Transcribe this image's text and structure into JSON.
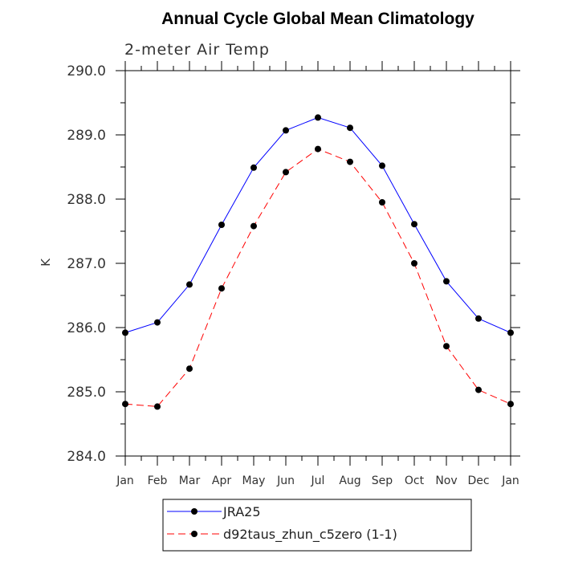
{
  "chart_data": {
    "type": "line",
    "title": "Annual Cycle Global Mean Climatology",
    "subtitle": "2-meter Air Temp",
    "xlabel": "",
    "ylabel": "K",
    "ylim": [
      284.0,
      290.0
    ],
    "yticks": [
      "284.0",
      "285.0",
      "286.0",
      "287.0",
      "288.0",
      "289.0",
      "290.0"
    ],
    "categories": [
      "Jan",
      "Feb",
      "Mar",
      "Apr",
      "May",
      "Jun",
      "Jul",
      "Aug",
      "Sep",
      "Oct",
      "Nov",
      "Dec",
      "Jan"
    ],
    "grid": false,
    "legend_position": "bottom",
    "series": [
      {
        "name": "JRA25",
        "color": "#0000ff",
        "dash": "solid",
        "values": [
          285.92,
          286.08,
          286.67,
          287.6,
          288.49,
          289.07,
          289.27,
          289.11,
          288.52,
          287.61,
          286.72,
          286.14,
          285.92
        ]
      },
      {
        "name": "d92taus_zhun_c5zero (1-1)",
        "color": "#ff0000",
        "dash": "dashed",
        "values": [
          284.81,
          284.77,
          285.36,
          286.61,
          287.58,
          288.42,
          288.78,
          288.58,
          287.95,
          287.0,
          285.71,
          285.03,
          284.81
        ]
      }
    ]
  }
}
